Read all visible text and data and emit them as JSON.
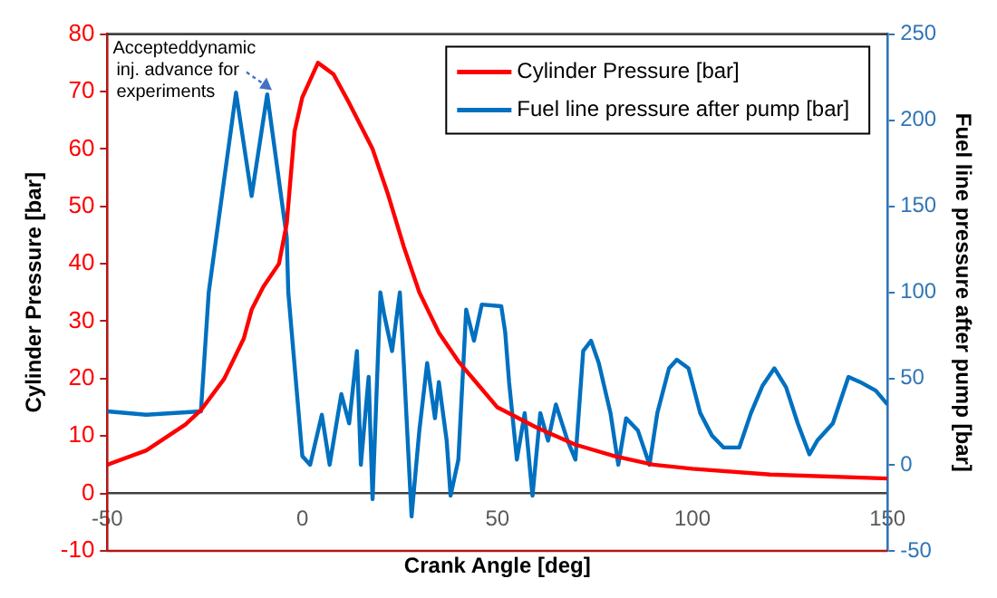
{
  "chart_data": {
    "type": "line",
    "xlabel": "Crank Angle [deg]",
    "ylabel": "Cylinder Pressure [bar]",
    "y2label": "Fuel line pressure after pump [bar]",
    "xlim": [
      -50,
      150
    ],
    "xticks": [
      -50,
      0,
      50,
      100,
      150
    ],
    "ylim": [
      -10,
      80
    ],
    "yticks": [
      -10,
      0,
      10,
      20,
      30,
      40,
      50,
      60,
      70,
      80
    ],
    "y2lim": [
      -50,
      250
    ],
    "y2ticks": [
      -50,
      0,
      50,
      100,
      150,
      200,
      250
    ],
    "grid": false,
    "legend": "top right",
    "marker": "none",
    "line_style": "solid",
    "annotations": [
      "Accepteddynamic inj. advance for experiments"
    ],
    "series": [
      {
        "name": "Cylinder Pressure [bar]",
        "color": "#ff0000",
        "x": [
          -50,
          -40,
          -30,
          -26,
          -20,
          -15,
          -13,
          -10,
          -6,
          -4,
          -3,
          -2,
          0,
          2,
          4,
          6,
          8,
          12,
          18,
          22,
          26,
          30,
          35,
          40,
          45,
          50,
          60,
          70,
          80,
          90,
          100,
          120,
          150
        ],
        "values": [
          5,
          7.5,
          12,
          14.5,
          20,
          27,
          32,
          36,
          40,
          47,
          55,
          63,
          69,
          72,
          75,
          74,
          73,
          68,
          60,
          52,
          43,
          35,
          28,
          23,
          19,
          15,
          11.5,
          8.5,
          6.5,
          5,
          4.3,
          3.3,
          2.6
        ]
      },
      {
        "name": "Fuel line pressure after pump [bar]",
        "color": "#0070c0",
        "axis": "y2",
        "x": [
          -50,
          -40,
          -26,
          -24,
          -17,
          -13,
          -9,
          -4,
          -3.6,
          0,
          2,
          5,
          7,
          10,
          12,
          14,
          15,
          17,
          18,
          20,
          21,
          23,
          25,
          26,
          28,
          30,
          32,
          34,
          35,
          37,
          38,
          40,
          42,
          44,
          46,
          51,
          52,
          53,
          55,
          57,
          59,
          61,
          63,
          65,
          68,
          70,
          72,
          74,
          76,
          79,
          81,
          83,
          86,
          89,
          91,
          94,
          96,
          99,
          102,
          105,
          108,
          112,
          115,
          118,
          121,
          124,
          127,
          130,
          132,
          136,
          140,
          143,
          147,
          150
        ],
        "values": [
          31,
          29,
          31,
          100,
          216,
          156,
          215,
          132,
          100,
          5,
          0,
          29,
          0,
          41,
          24,
          66,
          0,
          51,
          -20,
          100,
          87,
          66,
          100,
          59,
          -30,
          20,
          59,
          27,
          48,
          14,
          -18,
          3,
          90,
          72,
          93,
          92,
          77,
          48,
          3,
          30,
          -18,
          30,
          14,
          35,
          14,
          3,
          66,
          72,
          59,
          30,
          0,
          27,
          20,
          0,
          30,
          56,
          61,
          56,
          30,
          17,
          10,
          10,
          30,
          46,
          56,
          45,
          24,
          6,
          14,
          24,
          51,
          48,
          43,
          35
        ]
      }
    ]
  }
}
